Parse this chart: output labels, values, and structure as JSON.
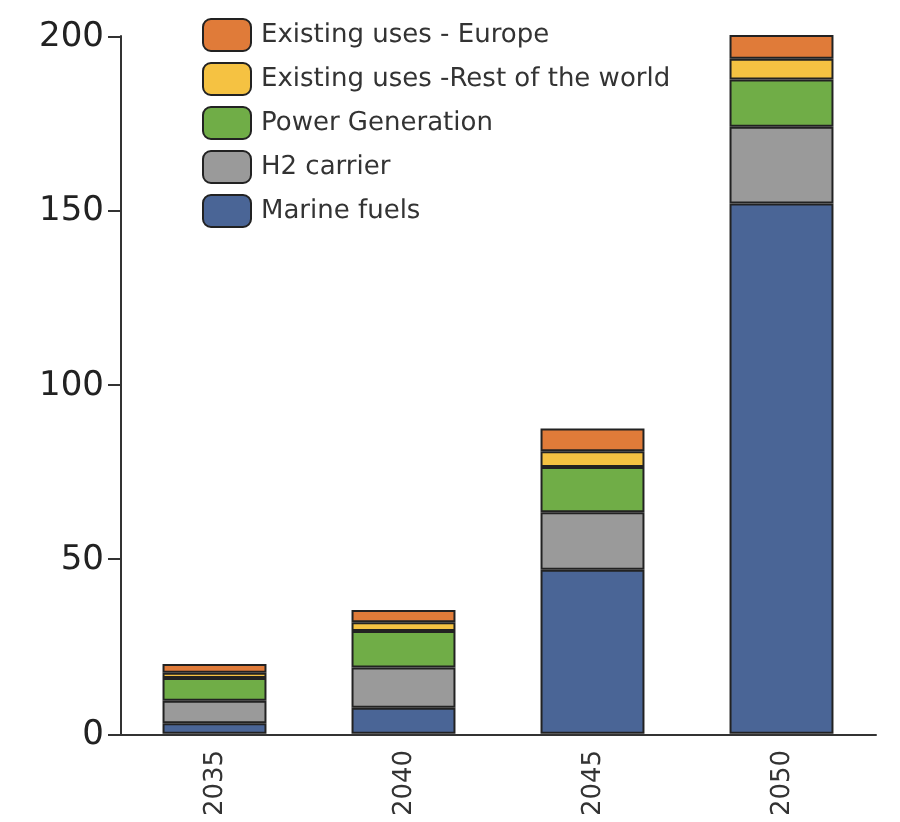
{
  "chart_data": {
    "type": "bar",
    "stacked": true,
    "categories": [
      "2035",
      "2040",
      "2045",
      "2050"
    ],
    "series": [
      {
        "name": "Marine fuels",
        "color": "#4a6596",
        "values": [
          3,
          7.5,
          47,
          152
        ]
      },
      {
        "name": "H2 carrier",
        "color": "#9a9a9a",
        "values": [
          6.5,
          11.5,
          16.5,
          22
        ]
      },
      {
        "name": "Power Generation",
        "color": "#70ad47",
        "values": [
          6.5,
          10.5,
          13,
          13.5
        ]
      },
      {
        "name": "Existing uses -Rest of the world",
        "color": "#f5c242",
        "values": [
          1.5,
          2.5,
          4.5,
          6
        ]
      },
      {
        "name": "Existing uses - Europe",
        "color": "#e07b39",
        "values": [
          2.5,
          3.5,
          6.5,
          7
        ]
      }
    ],
    "ylim": [
      0,
      200
    ],
    "yticks": [
      0,
      50,
      100,
      150,
      200
    ],
    "grid": false,
    "legend": "top left"
  }
}
